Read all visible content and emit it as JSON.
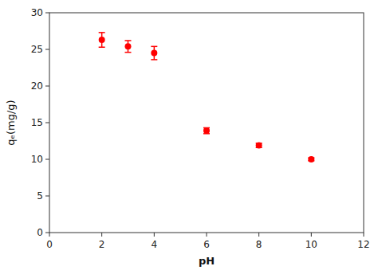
{
  "chart_data": {
    "type": "scatter",
    "x": [
      2,
      3,
      4,
      6,
      8,
      10
    ],
    "values": [
      26.3,
      25.4,
      24.5,
      13.9,
      11.9,
      10.0
    ],
    "yerr": [
      1.0,
      0.8,
      0.9,
      0.4,
      0.3,
      0.2
    ],
    "color": "#ff0000",
    "marker": "circle",
    "x_label": "pH",
    "y_label": "qₑ(mg/g)",
    "xlim": [
      0,
      12
    ],
    "ylim": [
      0,
      30
    ],
    "xticks": [
      0,
      2,
      4,
      6,
      8,
      10,
      12
    ],
    "yticks": [
      0,
      5,
      10,
      15,
      20,
      25,
      30
    ],
    "grid": false
  }
}
